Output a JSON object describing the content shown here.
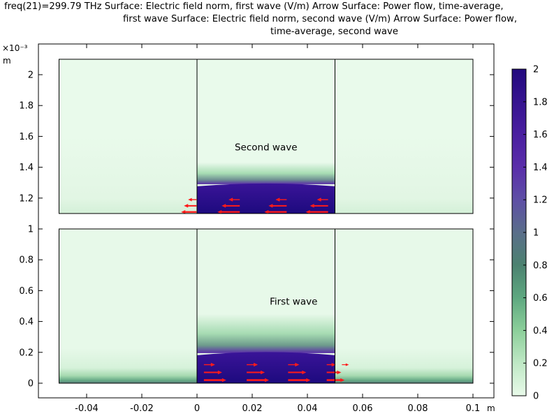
{
  "title": {
    "lines": [
      "freq(21)=299.79 THz Surface: Electric field norm, first wave (V/m)  Arrow Surface: Power flow, time-average,",
      "first wave  Surface: Electric field norm, second wave (V/m)  Arrow Surface: Power flow,",
      "time-average, second wave"
    ]
  },
  "chart_data": {
    "type": "heatmap",
    "x_unit": "m",
    "y_unit": "m",
    "y_multiplier": "×10⁻³",
    "xlim": [
      -0.05,
      0.1
    ],
    "ylim": [
      0,
      0.0021
    ],
    "x_ticks": [
      -0.04,
      -0.02,
      0,
      0.02,
      0.04,
      0.06,
      0.08,
      0.1
    ],
    "x_tick_labels": [
      "-0.04",
      "-0.02",
      "0",
      "0.02",
      "0.04",
      "0.06",
      "0.08",
      "0.1"
    ],
    "y_ticks": [
      0,
      0.2,
      0.4,
      0.6,
      0.8,
      1,
      1.2,
      1.4,
      1.6,
      1.8,
      2
    ],
    "y_tick_labels": [
      "0",
      "0.2",
      "0.4",
      "0.6",
      "0.8",
      "1",
      "1.2",
      "1.4",
      "1.6",
      "1.8",
      "2"
    ],
    "colorbar": {
      "min": 0,
      "max": 2,
      "ticks": [
        0,
        0.2,
        0.4,
        0.6,
        0.8,
        1,
        1.2,
        1.4,
        1.6,
        1.8,
        2
      ],
      "tick_labels": [
        "0",
        "0.2",
        "0.4",
        "0.6",
        "0.8",
        "1",
        "1.2",
        "1.4",
        "1.6",
        "1.8",
        "2"
      ],
      "colors": [
        "#e8fae9",
        "#bfe8c5",
        "#8ccf9a",
        "#5ea880",
        "#4c8270",
        "#5a6e8a",
        "#5e4fa6",
        "#5a2eaa",
        "#4a1fa0",
        "#361490",
        "#22097e"
      ]
    },
    "panels": [
      {
        "label": "First wave",
        "label_pos": [
          0.035,
          0.00051
        ],
        "x_range": [
          -0.05,
          0.1
        ],
        "y_range": [
          0,
          0.001
        ],
        "dividers": [
          0,
          0.05
        ],
        "high_region": {
          "x": [
            0,
            0.05
          ],
          "y_top": 0.000195
        },
        "low_band_top": 7e-05,
        "arrow_direction": "right"
      },
      {
        "label": "Second wave",
        "label_pos": [
          0.025,
          0.00151
        ],
        "x_range": [
          -0.05,
          0.1
        ],
        "y_range": [
          0.0011,
          0.0021
        ],
        "dividers": [
          0,
          0.05
        ],
        "high_region": {
          "x": [
            0,
            0.05
          ],
          "y_top": 0.00129
        },
        "arrow_direction": "left"
      }
    ],
    "grid": false
  },
  "colors": {
    "arrow": "#ff1a1a",
    "frame": "#000000"
  }
}
